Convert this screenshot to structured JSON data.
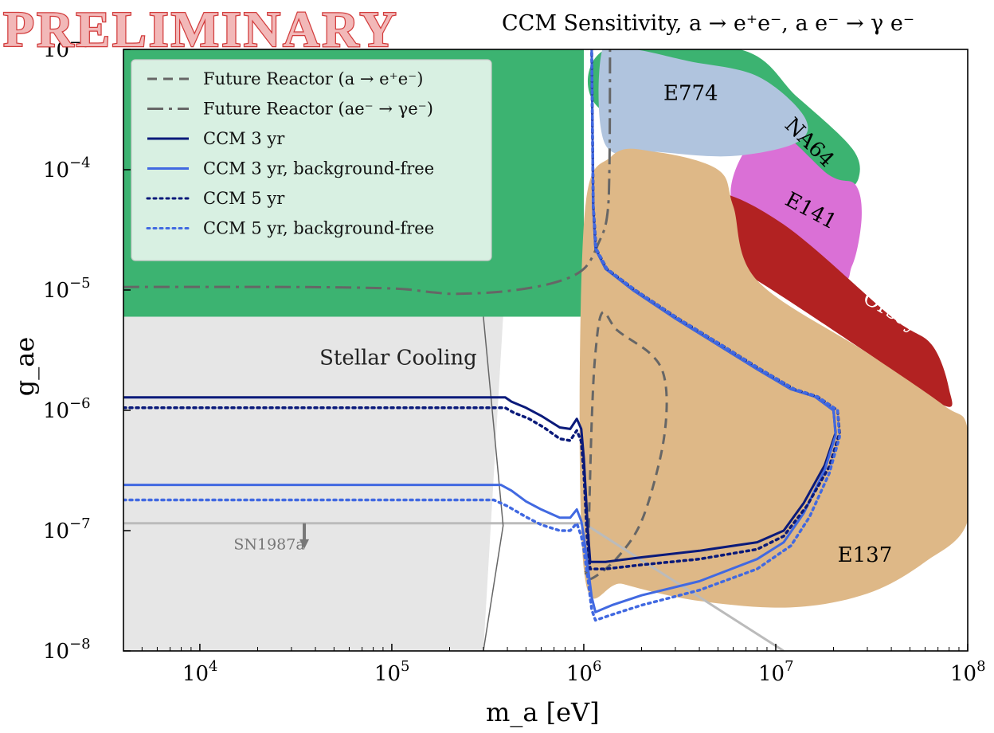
{
  "chart_data": {
    "type": "line",
    "title": "CCM Sensitivity, a → e⁺e⁻, a e⁻ → γ e⁻",
    "watermark": "PRELIMINARY",
    "xlabel": "m_a [eV]",
    "ylabel": "g_ae",
    "x_scale": "log",
    "y_scale": "log",
    "xlim": [
      4000,
      100000000
    ],
    "ylim": [
      1e-08,
      0.001
    ],
    "x_ticks": [
      {
        "value": 10000,
        "base": "10",
        "exp": "4"
      },
      {
        "value": 100000,
        "base": "10",
        "exp": "5"
      },
      {
        "value": 1000000,
        "base": "10",
        "exp": "6"
      },
      {
        "value": 10000000,
        "base": "10",
        "exp": "7"
      },
      {
        "value": 100000000,
        "base": "10",
        "exp": "8"
      }
    ],
    "y_ticks": [
      {
        "value": 1e-08,
        "base": "10",
        "exp": "−8"
      },
      {
        "value": 1e-07,
        "base": "10",
        "exp": "−7"
      },
      {
        "value": 1e-06,
        "base": "10",
        "exp": "−6"
      },
      {
        "value": 1e-05,
        "base": "10",
        "exp": "−5"
      },
      {
        "value": 0.0001,
        "base": "10",
        "exp": "−4"
      },
      {
        "value": 0.001,
        "base": "10",
        "exp": "−3"
      }
    ],
    "regions": [
      {
        "name": "Stellar Cooling",
        "label": "Stellar Cooling",
        "color": "#e6e6e6",
        "label_color": "#222222",
        "label_at": [
          42000.0,
          2.4e-06
        ],
        "points": [
          [
            4000,
            6e-06
          ],
          [
            380000.0,
            6e-06
          ],
          [
            300000.0,
            1e-08
          ],
          [
            4000,
            1e-08
          ]
        ]
      },
      {
        "name": "Green excluded region",
        "label": "",
        "color": "#3cb371",
        "label_color": "#000000",
        "points": [
          [
            4000,
            6e-06
          ],
          [
            1000000.0,
            6e-06
          ],
          [
            1000000.0,
            0.001
          ],
          [
            4000,
            0.001
          ]
        ]
      },
      {
        "name": "NA64",
        "label": "NA64",
        "color": "#3cb371",
        "label_color": "#000000",
        "label_at": [
          11000000.0,
          0.00023
        ],
        "label_rot": 45,
        "points": [
          [
            1300000.0,
            0.001
          ],
          [
            6500000.0,
            0.001
          ],
          [
            13000000.0,
            0.0004
          ],
          [
            25000000.0,
            0.00015
          ],
          [
            27000000.0,
            8.5e-05
          ],
          [
            22000000.0,
            7e-05
          ],
          [
            15000000.0,
            0.00012
          ],
          [
            8000000.0,
            0.00025
          ],
          [
            1300000.0,
            0.0003
          ]
        ]
      },
      {
        "name": "E141",
        "label": "E141",
        "color": "#da70d6",
        "label_color": "#000000",
        "label_at": [
          11000000.0,
          5.2e-05
        ],
        "label_rot": 28,
        "points": [
          [
            9000000.0,
            0.00022
          ],
          [
            19000000.0,
            9e-05
          ],
          [
            26000000.0,
            7.5e-05
          ],
          [
            28000000.0,
            4e-05
          ],
          [
            25000000.0,
            1.6e-05
          ],
          [
            20000000.0,
            1.3e-05
          ],
          [
            6000000.0,
            5e-05
          ]
        ]
      },
      {
        "name": "Orsay",
        "label": "Orsay",
        "color": "#b22222",
        "label_color": "#ffffff",
        "label_at": [
          28000000.0,
          8e-06
        ],
        "label_rot": 30,
        "points": [
          [
            4500000.0,
            6.5e-05
          ],
          [
            11000000.0,
            3.5e-05
          ],
          [
            40000000.0,
            6e-06
          ],
          [
            65000000.0,
            3.5e-06
          ],
          [
            80000000.0,
            1.5e-06
          ],
          [
            75000000.0,
            1.1e-06
          ],
          [
            30000000.0,
            3e-06
          ],
          [
            8000000.0,
            1.2e-05
          ],
          [
            3000000.0,
            3e-05
          ]
        ]
      },
      {
        "name": "E774",
        "label": "E774",
        "color": "#b0c4de",
        "label_color": "#000000",
        "label_at": [
          2600000.0,
          0.00038
        ],
        "points": [
          [
            1250000.0,
            0.001
          ],
          [
            1850000.0,
            0.001
          ],
          [
            3500000.0,
            0.0008
          ],
          [
            8000000.0,
            0.0006
          ],
          [
            14000000.0,
            0.00028
          ],
          [
            13000000.0,
            0.00017
          ],
          [
            6000000.0,
            0.00013
          ],
          [
            2500000.0,
            0.00014
          ],
          [
            1300000.0,
            0.00016
          ]
        ]
      },
      {
        "name": "E137",
        "label": "E137",
        "color": "#deb887",
        "label_color": "#000000",
        "label_at": [
          21000000.0,
          5.5e-08
        ],
        "points": [
          [
            1000000.0,
            3.5e-05
          ],
          [
            1400000.0,
            0.00013
          ],
          [
            2400000.0,
            0.00014
          ],
          [
            5000000.0,
            0.0001
          ],
          [
            6000000.0,
            5e-05
          ],
          [
            8000000.0,
            1.2e-05
          ],
          [
            30000000.0,
            3e-06
          ],
          [
            75000000.0,
            1.1e-06
          ],
          [
            100000000.0,
            7e-07
          ],
          [
            100000000.0,
            1.2e-07
          ],
          [
            60000000.0,
            5.5e-08
          ],
          [
            30000000.0,
            3e-08
          ],
          [
            12000000.0,
            2.3e-08
          ],
          [
            4000000.0,
            2.6e-08
          ],
          [
            1600000.0,
            3.6e-08
          ],
          [
            1000000.0,
            4.8e-08
          ]
        ]
      }
    ],
    "series": [
      {
        "name": "Future Reactor (a → e⁺e⁻)",
        "color": "#666666",
        "dash": "12,8",
        "width": 3,
        "points": [
          [
            1020000.0,
            4.5e-08
          ],
          [
            1050000.0,
            6e-08
          ],
          [
            1100000.0,
            8e-07
          ],
          [
            1150000.0,
            3e-06
          ],
          [
            1250000.0,
            6.5e-06
          ],
          [
            1500000.0,
            4.6e-06
          ],
          [
            2200000.0,
            3e-06
          ],
          [
            2600000.0,
            2e-06
          ],
          [
            2700000.0,
            1e-06
          ],
          [
            2500000.0,
            4e-07
          ],
          [
            2000000.0,
            1.2e-07
          ],
          [
            1500000.0,
            6e-08
          ],
          [
            1100000.0,
            4e-08
          ],
          [
            1020000.0,
            4.5e-08
          ]
        ]
      },
      {
        "name": "Future Reactor (ae⁻ → γe⁻)",
        "color": "#666666",
        "dash": "20,7,4,7",
        "width": 3,
        "points": [
          [
            4000,
            1.06e-05
          ],
          [
            30000.0,
            1.06e-05
          ],
          [
            100000.0,
            1.03e-05
          ],
          [
            160000.0,
            9.6e-06
          ],
          [
            220000.0,
            9.3e-06
          ],
          [
            400000.0,
            9.8e-06
          ],
          [
            700000.0,
            1.15e-05
          ],
          [
            1000000.0,
            1.5e-05
          ],
          [
            1200000.0,
            2.5e-05
          ],
          [
            1320000.0,
            4e-05
          ],
          [
            1360000.0,
            0.0001
          ],
          [
            1370000.0,
            0.001
          ]
        ]
      },
      {
        "name": "CCM 3 yr",
        "color": "#0a1a7a",
        "dash": "",
        "width": 3,
        "points": [
          [
            4000,
            1.28e-06
          ],
          [
            390000.0,
            1.28e-06
          ],
          [
            420000.0,
            1.18e-06
          ],
          [
            500000.0,
            1.05e-06
          ],
          [
            600000.0,
            9e-07
          ],
          [
            750000.0,
            7.2e-07
          ],
          [
            850000.0,
            7e-07
          ],
          [
            920000.0,
            8.5e-07
          ],
          [
            970000.0,
            7e-07
          ],
          [
            1000000.0,
            4e-07
          ],
          [
            1050000.0,
            1e-07
          ],
          [
            1080000.0,
            5.5e-08
          ],
          [
            1300000.0,
            5.5e-08
          ],
          [
            2000000.0,
            6e-08
          ],
          [
            4000000.0,
            6.8e-08
          ],
          [
            8000000.0,
            8e-08
          ],
          [
            11000000.0,
            1e-07
          ],
          [
            14000000.0,
            1.7e-07
          ],
          [
            18000000.0,
            3.5e-07
          ],
          [
            20500000.0,
            6.5e-07
          ],
          [
            20000000.0,
            1e-06
          ],
          [
            16000000.0,
            1.3e-06
          ],
          [
            12000000.0,
            1.5e-06
          ],
          [
            8000000.0,
            2.2e-06
          ],
          [
            5000000.0,
            3.5e-06
          ],
          [
            3000000.0,
            5.8e-06
          ],
          [
            1800000.0,
            1e-05
          ],
          [
            1300000.0,
            1.5e-05
          ],
          [
            1150000.0,
            2.2e-05
          ],
          [
            1120000.0,
            5e-05
          ],
          [
            1100000.0,
            0.001
          ]
        ]
      },
      {
        "name": "CCM 3 yr, background-free",
        "color": "#4169e1",
        "dash": "",
        "width": 3,
        "points": [
          [
            4000,
            2.4e-07
          ],
          [
            370000.0,
            2.4e-07
          ],
          [
            420000.0,
            2.15e-07
          ],
          [
            500000.0,
            1.75e-07
          ],
          [
            600000.0,
            1.5e-07
          ],
          [
            750000.0,
            1.28e-07
          ],
          [
            850000.0,
            1.28e-07
          ],
          [
            920000.0,
            1.5e-07
          ],
          [
            970000.0,
            1.2e-07
          ],
          [
            1000000.0,
            9e-08
          ],
          [
            1050000.0,
            5e-08
          ],
          [
            1100000.0,
            2.8e-08
          ],
          [
            1150000.0,
            2.1e-08
          ],
          [
            1400000.0,
            2.4e-08
          ],
          [
            2000000.0,
            2.9e-08
          ],
          [
            4000000.0,
            3.8e-08
          ],
          [
            8000000.0,
            5.8e-08
          ],
          [
            11000000.0,
            8e-08
          ],
          [
            14000000.0,
            1.4e-07
          ],
          [
            18000000.0,
            3.2e-07
          ],
          [
            20500000.0,
            6.2e-07
          ],
          [
            20000000.0,
            1e-06
          ],
          [
            16000000.0,
            1.3e-06
          ],
          [
            12000000.0,
            1.5e-06
          ],
          [
            8000000.0,
            2.2e-06
          ],
          [
            5000000.0,
            3.5e-06
          ],
          [
            3000000.0,
            5.8e-06
          ],
          [
            1800000.0,
            1e-05
          ],
          [
            1300000.0,
            1.5e-05
          ],
          [
            1150000.0,
            2.2e-05
          ],
          [
            1120000.0,
            5e-05
          ],
          [
            1100000.0,
            0.001
          ]
        ]
      },
      {
        "name": "CCM 5 yr",
        "color": "#0a1a7a",
        "dash": "3,5",
        "width": 3.5,
        "points": [
          [
            4000,
            1.05e-06
          ],
          [
            390000.0,
            1.05e-06
          ],
          [
            430000.0,
            9.6e-07
          ],
          [
            520000.0,
            8.5e-07
          ],
          [
            620000.0,
            7.2e-07
          ],
          [
            750000.0,
            5.8e-07
          ],
          [
            850000.0,
            5.6e-07
          ],
          [
            920000.0,
            6.8e-07
          ],
          [
            970000.0,
            5.5e-07
          ],
          [
            1000000.0,
            3e-07
          ],
          [
            1040000.0,
            9e-08
          ],
          [
            1080000.0,
            4.8e-08
          ],
          [
            1300000.0,
            4.8e-08
          ],
          [
            2000000.0,
            5.2e-08
          ],
          [
            4000000.0,
            5.8e-08
          ],
          [
            8000000.0,
            7e-08
          ],
          [
            11000000.0,
            9e-08
          ],
          [
            14500000.0,
            1.6e-07
          ],
          [
            19000000.0,
            3.4e-07
          ],
          [
            21500000.0,
            6.5e-07
          ],
          [
            21000000.0,
            1e-06
          ],
          [
            16500000.0,
            1.3e-06
          ],
          [
            12500000.0,
            1.5e-06
          ],
          [
            8300000.0,
            2.2e-06
          ],
          [
            5200000.0,
            3.5e-06
          ],
          [
            3100000.0,
            5.8e-06
          ],
          [
            1850000.0,
            1e-05
          ],
          [
            1320000.0,
            1.5e-05
          ],
          [
            1160000.0,
            2.2e-05
          ],
          [
            1120000.0,
            5e-05
          ],
          [
            1100000.0,
            0.001
          ]
        ]
      },
      {
        "name": "CCM 5 yr, background-free",
        "color": "#4169e1",
        "dash": "3,5",
        "width": 3.5,
        "points": [
          [
            4000,
            1.8e-07
          ],
          [
            340000.0,
            1.8e-07
          ],
          [
            400000.0,
            1.6e-07
          ],
          [
            500000.0,
            1.3e-07
          ],
          [
            600000.0,
            1.12e-07
          ],
          [
            750000.0,
            1e-07
          ],
          [
            850000.0,
            1e-07
          ],
          [
            920000.0,
            1.15e-07
          ],
          [
            970000.0,
            9e-08
          ],
          [
            1000000.0,
            7e-08
          ],
          [
            1050000.0,
            4e-08
          ],
          [
            1100000.0,
            2.2e-08
          ],
          [
            1150000.0,
            1.8e-08
          ],
          [
            1400000.0,
            2e-08
          ],
          [
            2000000.0,
            2.4e-08
          ],
          [
            4000000.0,
            3.2e-08
          ],
          [
            8000000.0,
            4.8e-08
          ],
          [
            12000000.0,
            7.5e-08
          ],
          [
            15000000.0,
            1.3e-07
          ],
          [
            19000000.0,
            3e-07
          ],
          [
            21500000.0,
            6e-07
          ],
          [
            21000000.0,
            1e-06
          ],
          [
            16500000.0,
            1.3e-06
          ],
          [
            12500000.0,
            1.5e-06
          ],
          [
            8300000.0,
            2.2e-06
          ],
          [
            5200000.0,
            3.5e-06
          ],
          [
            3100000.0,
            5.8e-06
          ],
          [
            1850000.0,
            1e-05
          ],
          [
            1320000.0,
            1.5e-05
          ],
          [
            1160000.0,
            2.2e-05
          ],
          [
            1120000.0,
            5e-05
          ],
          [
            1100000.0,
            0.001
          ]
        ]
      }
    ],
    "extra_lines": [
      {
        "name": "SN1987a",
        "color": "#bbbbbb",
        "width": 3,
        "points": [
          [
            4000,
            1.15e-07
          ],
          [
            1000000.0,
            1.15e-07
          ],
          [
            11000000.0,
            1e-08
          ]
        ]
      },
      {
        "name": "Stellar Cooling boundary",
        "color": "#666666",
        "width": 1.5,
        "points": [
          [
            300000.0,
            6e-06
          ],
          [
            380000.0,
            1.1e-07
          ],
          [
            300000.0,
            1e-08
          ]
        ]
      }
    ],
    "annotations": [
      {
        "text": "SN1987a",
        "x": 15000.0,
        "y": 7e-08,
        "color": "#777777",
        "arrow_from": [
          35000.0,
          1.15e-07
        ],
        "arrow_to": [
          35000.0,
          7.5e-08
        ]
      }
    ],
    "legend": {
      "position": "top-left",
      "entries": [
        {
          "label": "Future Reactor (a → e⁺e⁻)",
          "color": "#666666",
          "dash": "12,8"
        },
        {
          "label": "Future Reactor (ae⁻ → γe⁻)",
          "color": "#666666",
          "dash": "20,7,4,7"
        },
        {
          "label": "CCM 3 yr",
          "color": "#0a1a7a",
          "dash": ""
        },
        {
          "label": "CCM 3 yr, background-free",
          "color": "#4169e1",
          "dash": ""
        },
        {
          "label": "CCM 5 yr",
          "color": "#0a1a7a",
          "dash": "3,5"
        },
        {
          "label": "CCM 5 yr, background-free",
          "color": "#4169e1",
          "dash": "3,5"
        }
      ]
    },
    "grid": false
  }
}
